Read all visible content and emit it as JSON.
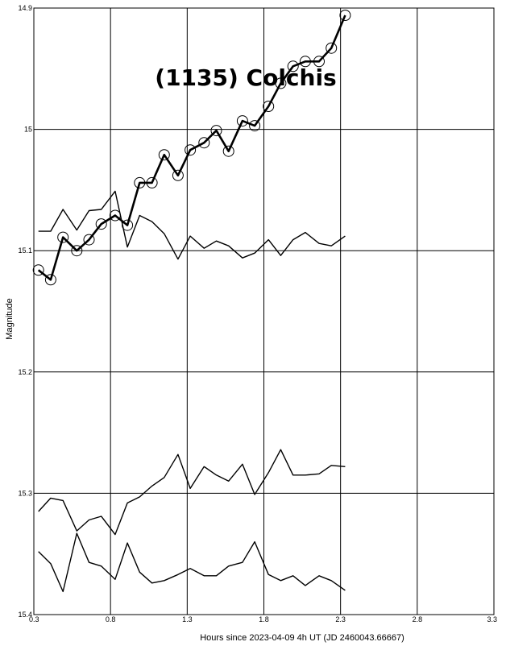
{
  "chart_data": {
    "type": "line",
    "title": "(1135) Colchis",
    "xlabel": "Hours since 2023-04-09 4h UT (JD 2460043.66667)",
    "ylabel": "Magnitude",
    "xlim": [
      0.3,
      3.3
    ],
    "ylim": [
      14.9,
      15.4
    ],
    "y_inverted": true,
    "grid": true,
    "x_ticks": [
      "0.3",
      "0.8",
      "1.3",
      "1.8",
      "2.3",
      "2.8",
      "3.3"
    ],
    "y_ticks": [
      "14.9",
      "15",
      "15.1",
      "15.2",
      "15.3",
      "15.4"
    ],
    "series": [
      {
        "role": "target",
        "markers": "open-circle",
        "x": [
          0.33,
          0.41,
          0.49,
          0.58,
          0.66,
          0.74,
          0.83,
          0.91,
          0.99,
          1.07,
          1.15,
          1.24,
          1.32,
          1.41,
          1.49,
          1.57,
          1.66,
          1.74,
          1.83,
          1.91,
          1.99,
          2.07,
          2.16,
          2.24,
          2.33
        ],
        "values": [
          15.116,
          15.124,
          15.089,
          15.1,
          15.091,
          15.078,
          15.071,
          15.079,
          15.044,
          15.044,
          15.021,
          15.038,
          15.017,
          15.011,
          15.001,
          15.018,
          14.993,
          14.997,
          14.981,
          14.962,
          14.948,
          14.944,
          14.944,
          14.933,
          14.906
        ]
      },
      {
        "role": "comparison",
        "x": [
          0.33,
          0.41,
          0.49,
          0.58,
          0.66,
          0.74,
          0.83,
          0.91,
          0.99,
          1.07,
          1.15,
          1.24,
          1.32,
          1.41,
          1.49,
          1.57,
          1.66,
          1.74,
          1.83,
          1.91,
          1.99,
          2.07,
          2.16,
          2.24,
          2.33
        ],
        "values": [
          15.084,
          15.084,
          15.066,
          15.083,
          15.067,
          15.066,
          15.051,
          15.097,
          15.071,
          15.076,
          15.086,
          15.107,
          15.088,
          15.098,
          15.092,
          15.096,
          15.106,
          15.102,
          15.091,
          15.104,
          15.091,
          15.085,
          15.094,
          15.096,
          15.088
        ]
      },
      {
        "role": "comparison",
        "x": [
          0.33,
          0.41,
          0.49,
          0.58,
          0.66,
          0.74,
          0.83,
          0.91,
          0.99,
          1.07,
          1.15,
          1.24,
          1.32,
          1.41,
          1.49,
          1.57,
          1.66,
          1.74,
          1.83,
          1.91,
          1.99,
          2.07,
          2.16,
          2.24,
          2.33
        ],
        "values": [
          15.315,
          15.304,
          15.306,
          15.331,
          15.322,
          15.319,
          15.334,
          15.308,
          15.303,
          15.294,
          15.287,
          15.268,
          15.296,
          15.278,
          15.285,
          15.29,
          15.276,
          15.301,
          15.283,
          15.264,
          15.285,
          15.285,
          15.284,
          15.277,
          15.278
        ]
      },
      {
        "role": "comparison",
        "x": [
          0.33,
          0.41,
          0.49,
          0.58,
          0.66,
          0.74,
          0.83,
          0.91,
          0.99,
          1.07,
          1.15,
          1.24,
          1.32,
          1.41,
          1.49,
          1.57,
          1.66,
          1.74,
          1.83,
          1.91,
          1.99,
          2.07,
          2.16,
          2.24,
          2.33
        ],
        "values": [
          15.348,
          15.358,
          15.381,
          15.333,
          15.357,
          15.36,
          15.371,
          15.341,
          15.365,
          15.374,
          15.372,
          15.367,
          15.362,
          15.368,
          15.368,
          15.36,
          15.357,
          15.34,
          15.367,
          15.372,
          15.368,
          15.376,
          15.368,
          15.372,
          15.38
        ]
      }
    ]
  }
}
